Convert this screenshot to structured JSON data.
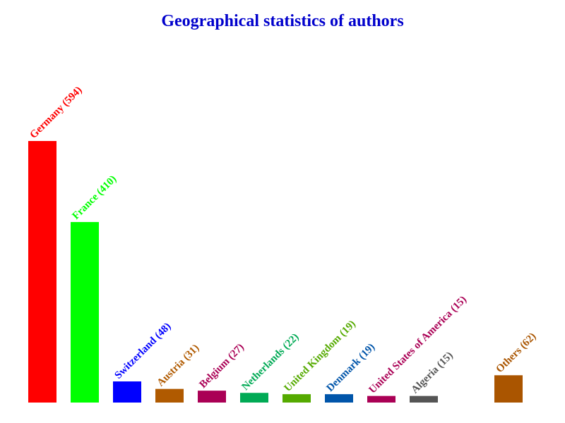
{
  "chart_data": {
    "type": "bar",
    "title": "Geographical statistics of authors",
    "value_labels": [
      "Germany (594)",
      "France (410)",
      "Switzerland (48)",
      "Austria (31)",
      "Belgium (27)",
      "Netherlands (22)",
      "United Kingdom (19)",
      "Denmark (19)",
      "United States of America (15)",
      "Algeria (15)",
      null,
      "Others (62)"
    ],
    "values": [
      594,
      410,
      48,
      31,
      27,
      22,
      19,
      19,
      15,
      15,
      null,
      62
    ],
    "colors": [
      "#ff0000",
      "#00ff00",
      "#0000ff",
      "#b05a00",
      "#aa0055",
      "#00aa55",
      "#55aa00",
      "#0055aa",
      "#aa0055",
      "#555555",
      null,
      "#aa5500"
    ]
  }
}
